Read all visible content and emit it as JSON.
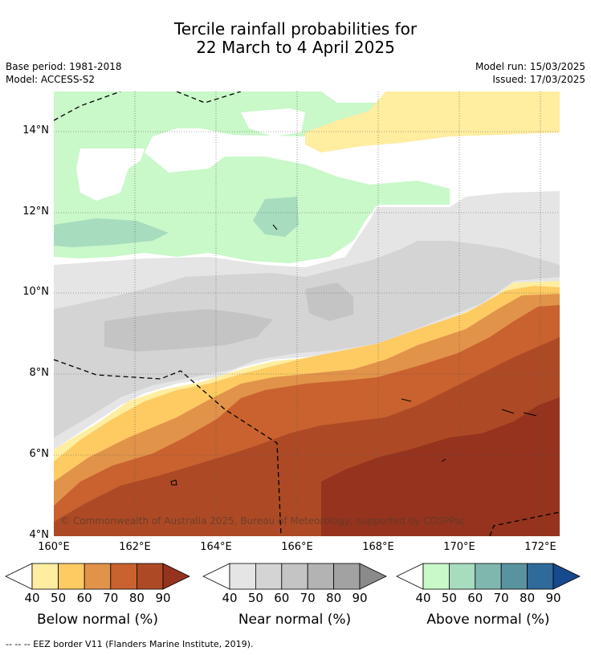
{
  "title_line1": "Tercile rainfall probabilities for",
  "title_line2": "22 March to 4 April 2025",
  "base_period": "Base period: 1981-2018",
  "model": "Model: ACCESS-S2",
  "model_run": "Model run: 15/03/2025",
  "issued": "Issued: 17/03/2025",
  "copyright": "© Commonwealth of Australia 2025, Bureau of Meteorology, supported by COSPPac",
  "lat_labels": [
    "14°N",
    "12°N",
    "10°N",
    "8°N",
    "6°N",
    "4°N"
  ],
  "lon_labels": [
    "160°E",
    "162°E",
    "164°E",
    "166°E",
    "168°E",
    "170°E",
    "172°E"
  ],
  "colorbars": [
    {
      "label": "Below normal (%)",
      "ticks": [
        "40",
        "50",
        "60",
        "70",
        "80",
        "90"
      ],
      "colors": [
        "#ffffff",
        "#ffeda0",
        "#fdcb62",
        "#e1934a",
        "#c9622f",
        "#ad4a25",
        "#95331e"
      ]
    },
    {
      "label": "Near normal (%)",
      "ticks": [
        "40",
        "50",
        "60",
        "70",
        "80",
        "90"
      ],
      "colors": [
        "#ffffff",
        "#e5e5e5",
        "#d4d4d4",
        "#c4c4c4",
        "#b3b3b3",
        "#a2a2a2",
        "#8a8a8a"
      ]
    },
    {
      "label": "Above normal (%)",
      "ticks": [
        "40",
        "50",
        "60",
        "70",
        "80",
        "90"
      ],
      "colors": [
        "#ffffff",
        "#c9f8c9",
        "#a7dcbf",
        "#7fb7ae",
        "#5a93a0",
        "#2f6a9a",
        "#174a8c"
      ]
    }
  ],
  "footnote": "-- -- -- EEZ border V11 (Flanders Marine Institute, 2019)."
}
